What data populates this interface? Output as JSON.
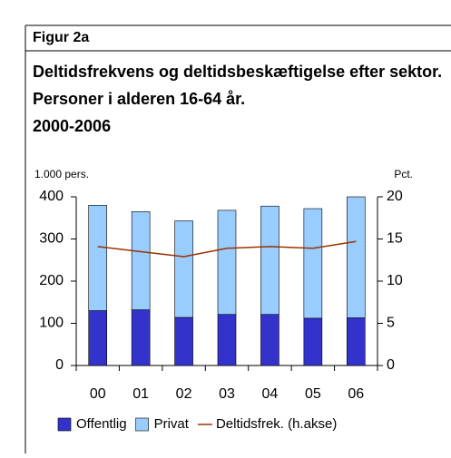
{
  "header": "Figur 2a",
  "chart_data": {
    "type": "bar",
    "title": "Deltidsfrekvens og deltidsbeskæftigelse efter sektor. Personer i alderen 16-64 år. 2000-2006",
    "ylabel": "1.000 pers.",
    "y2label": "Pct.",
    "categories": [
      "00",
      "01",
      "02",
      "03",
      "04",
      "05",
      "06"
    ],
    "stacked": true,
    "series": [
      {
        "name": "Offentlig",
        "color": "#3333cc",
        "values": [
          130,
          132,
          114,
          121,
          121,
          112,
          113
        ]
      },
      {
        "name": "Privat",
        "color": "#99ccff",
        "values": [
          250,
          233,
          229,
          247,
          257,
          260,
          287
        ]
      },
      {
        "name": "Deltidsfrek. (h.akse)",
        "color": "#993300",
        "type": "line",
        "axis": "y2",
        "values": [
          14.1,
          13.5,
          12.9,
          13.9,
          14.1,
          13.9,
          14.7
        ]
      }
    ],
    "ylim": [
      0,
      400
    ],
    "yticks": [
      0,
      100,
      200,
      300,
      400
    ],
    "y2lim": [
      0,
      20
    ],
    "y2ticks": [
      0,
      5,
      10,
      15,
      20
    ],
    "grid": false,
    "legend": "bottom"
  }
}
